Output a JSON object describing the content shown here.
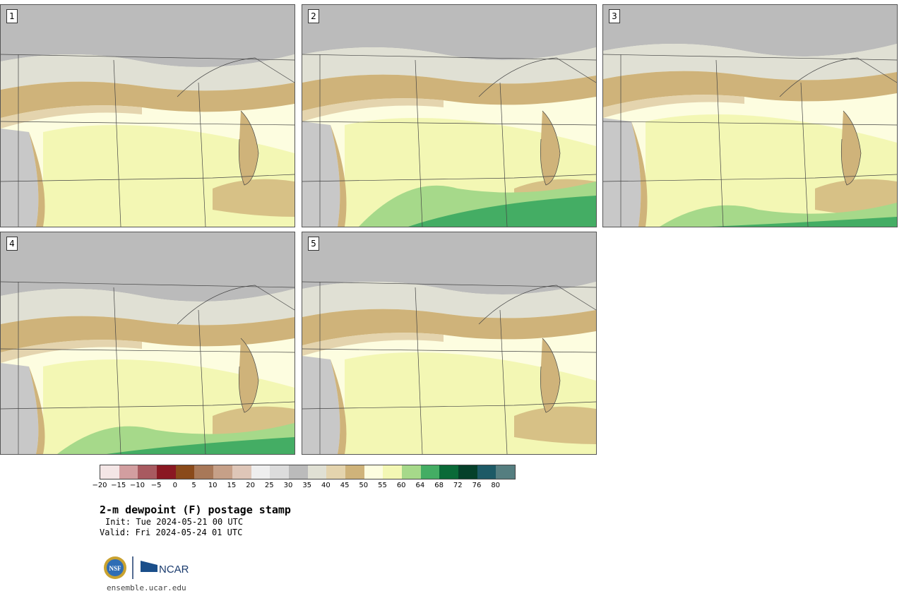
{
  "panels": [
    {
      "label": "1"
    },
    {
      "label": "2"
    },
    {
      "label": "3"
    },
    {
      "label": "4"
    },
    {
      "label": "5"
    }
  ],
  "colorbar": {
    "colors": [
      "#f4e6e6",
      "#d29ea0",
      "#a85a60",
      "#8a1822",
      "#8a4a1a",
      "#a87858",
      "#c6a088",
      "#dec6b8",
      "#eeeeee",
      "#dcdcdc",
      "#bbbbbb",
      "#e0e0d4",
      "#e4d4ae",
      "#cfb37a",
      "#fdfde0",
      "#f3f7b4",
      "#a6d98a",
      "#44ad64",
      "#0a6a38",
      "#05402a",
      "#1d5a66",
      "#557e80"
    ],
    "ticks": [
      "−20",
      "−15",
      "−10",
      "−5",
      "0",
      "5",
      "10",
      "15",
      "20",
      "25",
      "30",
      "35",
      "40",
      "45",
      "50",
      "55",
      "60",
      "64",
      "68",
      "72",
      "76",
      "80"
    ]
  },
  "title": "2-m dewpoint (F) postage stamp",
  "init": "Init: Tue 2024-05-21 00 UTC",
  "valid": "Valid: Fri 2024-05-24 01 UTC",
  "logos": {
    "nsf": "NSF",
    "ncar": "NCAR"
  },
  "site": "ensemble.ucar.edu"
}
